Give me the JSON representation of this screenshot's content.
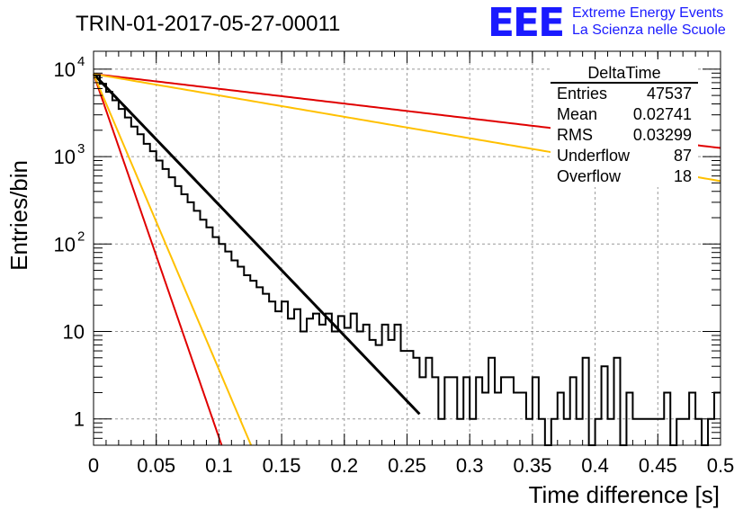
{
  "header": {
    "run_title": "TRIN-01-2017-05-27-00011",
    "logo_text": "EEE",
    "logo_line1": "Extreme Energy Events",
    "logo_line2": "La Scienza nelle Scuole",
    "logo_color": "#1a1aff"
  },
  "stats": {
    "title": "DeltaTime",
    "rows": [
      {
        "label": "Entries",
        "value": "47537"
      },
      {
        "label": "Mean",
        "value": "0.02741"
      },
      {
        "label": "RMS",
        "value": "0.03299"
      },
      {
        "label": "Underflow",
        "value": "87"
      },
      {
        "label": "Overflow",
        "value": "18"
      }
    ]
  },
  "chart_data": {
    "type": "line",
    "title": "TRIN-01-2017-05-27-00011",
    "xlabel": "Time difference [s]",
    "ylabel": "Entries/bin",
    "xlim": [
      0,
      0.5
    ],
    "ylim": [
      0.5,
      16000
    ],
    "yscale": "log",
    "grid": true,
    "x_ticks": [
      "0",
      "0.05",
      "0.1",
      "0.15",
      "0.2",
      "0.25",
      "0.3",
      "0.35",
      "0.4",
      "0.45",
      "0.5"
    ],
    "y_ticks": [
      {
        "value": 1,
        "label": "1"
      },
      {
        "value": 10,
        "label": "10"
      },
      {
        "value": 100,
        "label": "10",
        "exp": "2"
      },
      {
        "value": 1000,
        "label": "10",
        "exp": "3"
      },
      {
        "value": 10000,
        "label": "10",
        "exp": "4"
      }
    ],
    "histogram": {
      "name": "DeltaTime",
      "color": "#000000",
      "bin_width": 0.005,
      "values": [
        8500,
        6800,
        5500,
        4400,
        3500,
        2800,
        2200,
        1800,
        1400,
        1150,
        900,
        720,
        580,
        460,
        370,
        300,
        240,
        190,
        155,
        120,
        100,
        82,
        65,
        55,
        44,
        38,
        32,
        27,
        22,
        17,
        22,
        14,
        18,
        10,
        14,
        16,
        12,
        16,
        10,
        15,
        11,
        16,
        10,
        12,
        8,
        7,
        12,
        8,
        12,
        6,
        6,
        5,
        3,
        5,
        3,
        1,
        3,
        3,
        1,
        3,
        1,
        3,
        2,
        5,
        2,
        3,
        3,
        2,
        2,
        1,
        3,
        1,
        0,
        1,
        2,
        1,
        3,
        1,
        5,
        0.3,
        1,
        4,
        1,
        5,
        0.3,
        2,
        1,
        1,
        1,
        1,
        1,
        2,
        0.3,
        1,
        1,
        2,
        1,
        0.3,
        1,
        2
      ]
    },
    "fits": [
      {
        "name": "exp-fit",
        "color": "#000000",
        "A": 8800,
        "tau": 0.02903,
        "x_range": [
          0,
          0.26
        ]
      },
      {
        "name": "exp-upper-slow",
        "color": "#e00000",
        "A": 8800,
        "tau": 0.2565,
        "x_range": [
          0,
          0.5
        ]
      },
      {
        "name": "exp-lower-slow",
        "color": "#ffc000",
        "A": 8800,
        "tau": 0.1773,
        "x_range": [
          0,
          0.5
        ]
      },
      {
        "name": "exp-fast-red",
        "color": "#e00000",
        "A": 8800,
        "tau": 0.01045,
        "x_range": [
          0,
          0.11
        ]
      },
      {
        "name": "exp-fast-orange",
        "color": "#ffc000",
        "A": 8800,
        "tau": 0.01285,
        "x_range": [
          0,
          0.13
        ]
      }
    ]
  }
}
